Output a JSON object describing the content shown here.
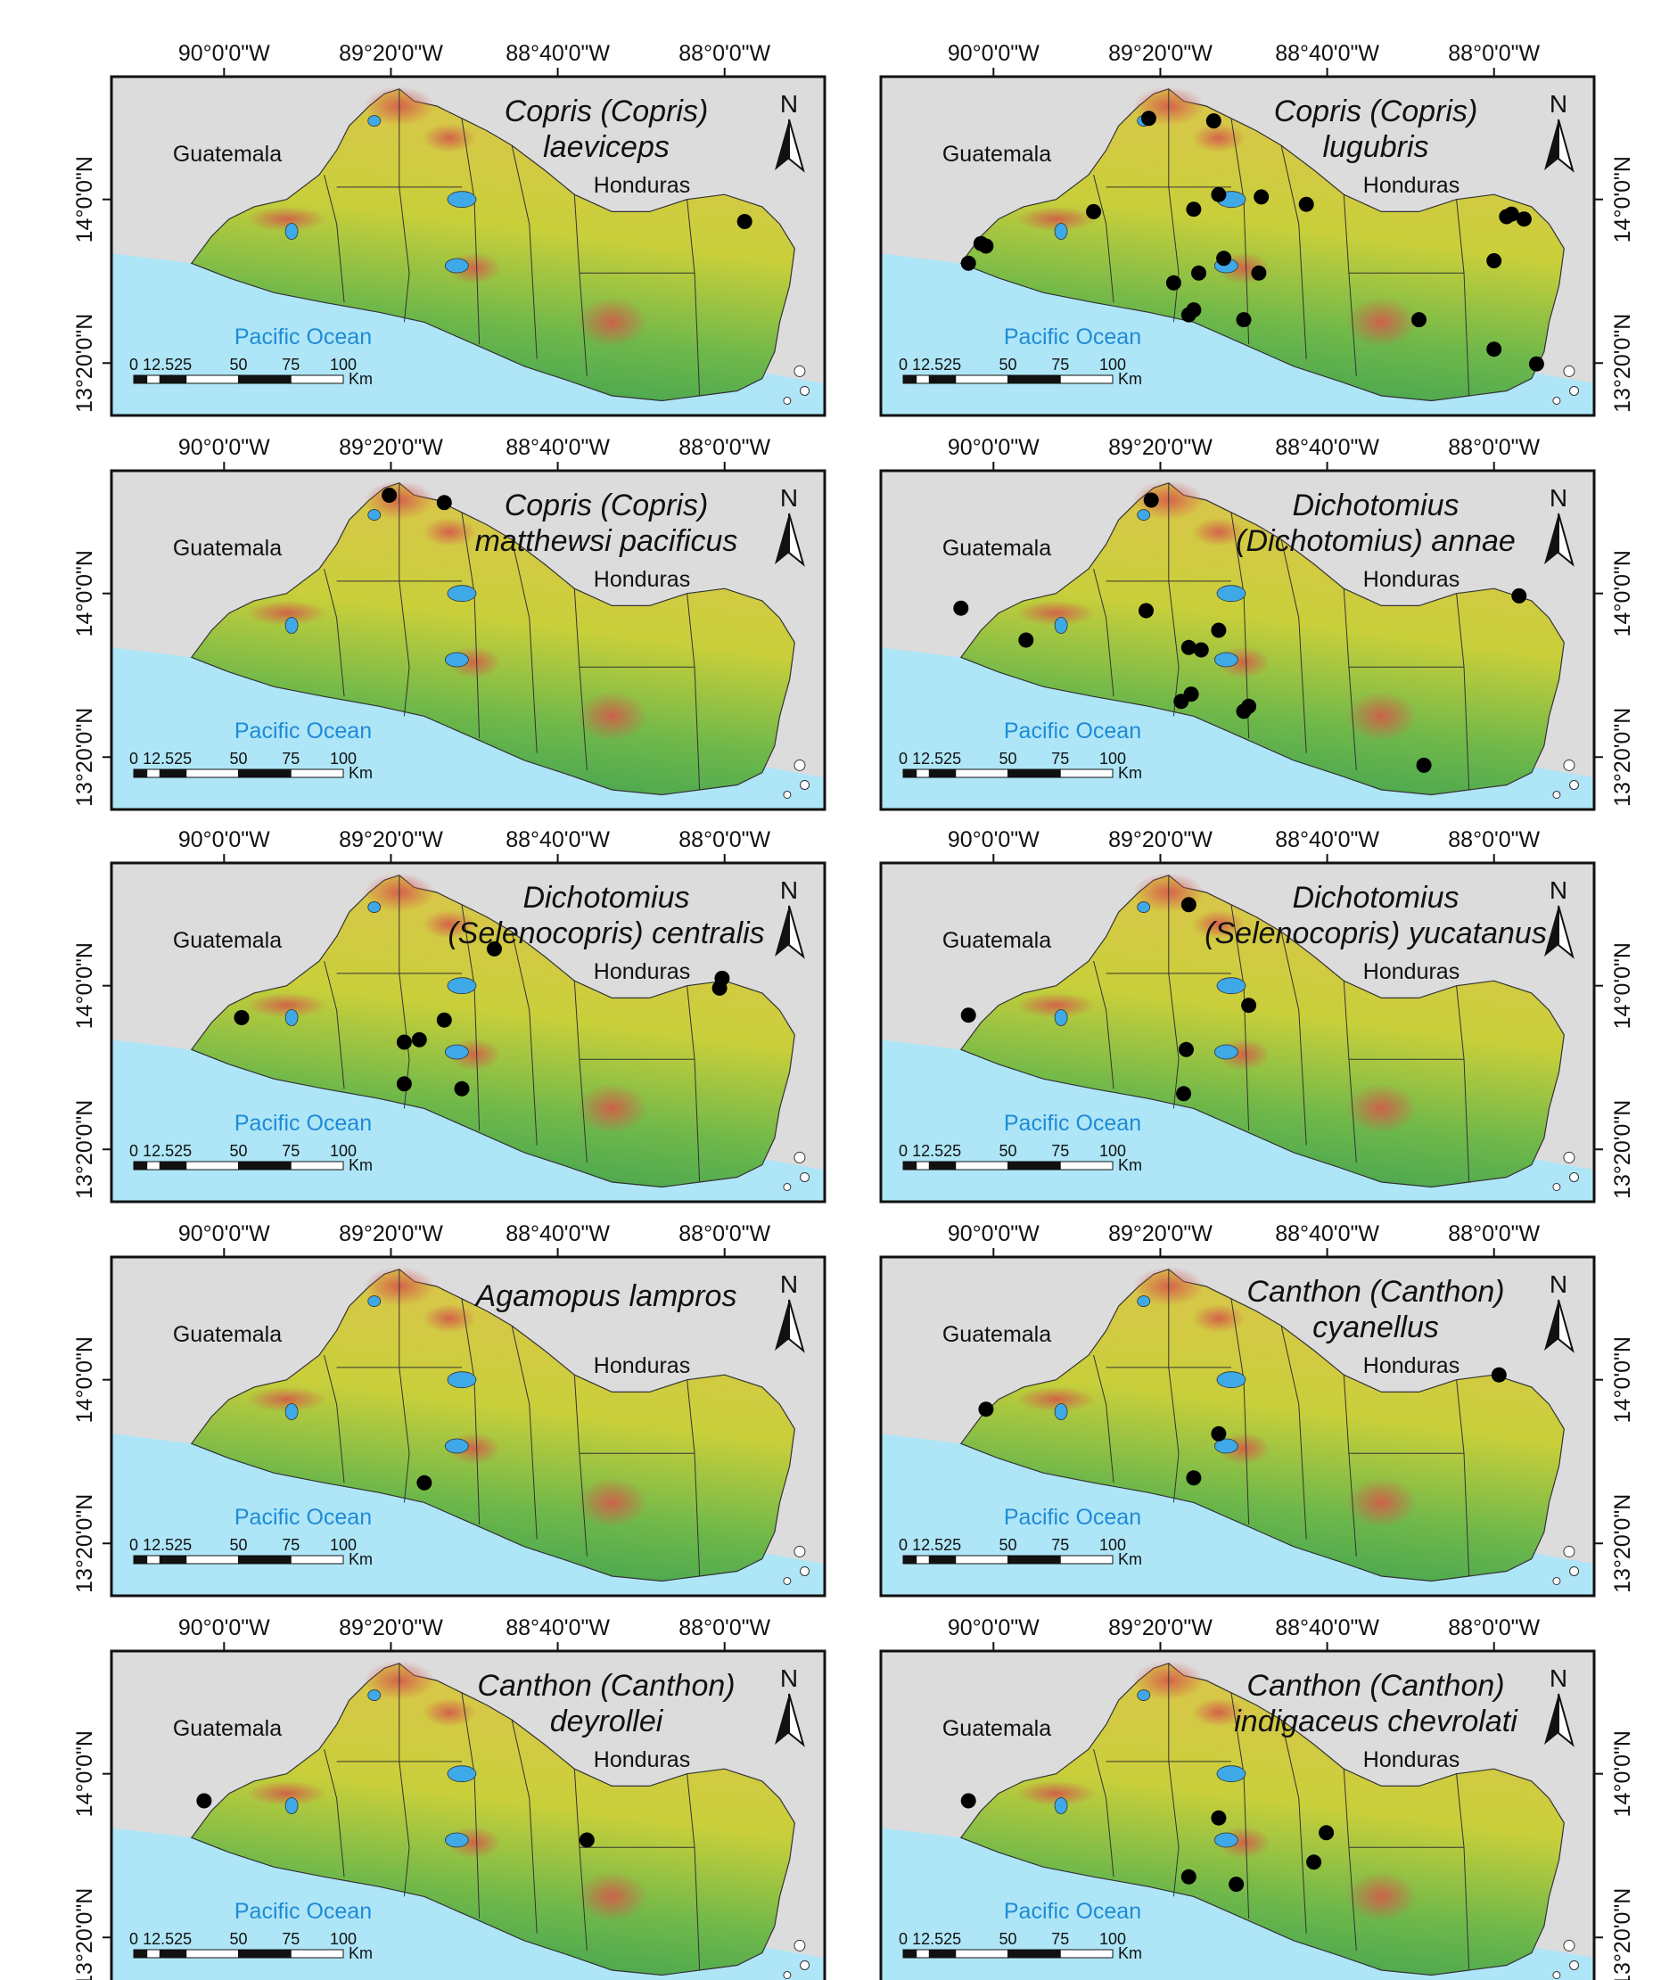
{
  "figure": {
    "top_ticks": [
      "90°0'0\"W",
      "89°20'0\"W",
      "88°40'0\"W",
      "88°0'0\"W"
    ],
    "side_ticks": [
      "14°0'0\"N",
      "13°20'0\"N"
    ],
    "countries": [
      "Guatemala",
      "Honduras"
    ],
    "ocean": "Pacific Ocean",
    "scale_labels": [
      "0",
      "12.525",
      "50",
      "75",
      "100"
    ],
    "scale_unit": "Km",
    "north_label": "N",
    "colors": {
      "ocean": "#aee6f7",
      "land_outside": "#dcdcdc",
      "relief_low": "#2f9b55",
      "relief_mid": "#c9cf3a",
      "relief_high": "#d4584a",
      "lake": "#3fa9e8",
      "record_dot": "#000000"
    }
  },
  "maps": [
    {
      "title_lines": [
        "Copris (Copris)",
        "laeviceps"
      ],
      "records": [
        [
          -87.92,
          13.91
        ]
      ]
    },
    {
      "title_lines": [
        "Copris (Copris)",
        "lugubris"
      ],
      "records": [
        [
          -90.1,
          13.74
        ],
        [
          -90.05,
          13.82
        ],
        [
          -90.03,
          13.81
        ],
        [
          -89.38,
          14.33
        ],
        [
          -89.12,
          14.32
        ],
        [
          -89.6,
          13.95
        ],
        [
          -89.2,
          13.96
        ],
        [
          -89.1,
          14.02
        ],
        [
          -88.93,
          14.01
        ],
        [
          -88.75,
          13.98
        ],
        [
          -89.28,
          13.66
        ],
        [
          -89.18,
          13.7
        ],
        [
          -89.08,
          13.76
        ],
        [
          -88.94,
          13.7
        ],
        [
          -89.22,
          13.53
        ],
        [
          -89.2,
          13.55
        ],
        [
          -89.0,
          13.51
        ],
        [
          -88.3,
          13.51
        ],
        [
          -87.93,
          13.94
        ],
        [
          -87.88,
          13.92
        ],
        [
          -87.95,
          13.93
        ],
        [
          -88.0,
          13.75
        ],
        [
          -88.0,
          13.39
        ],
        [
          -87.83,
          13.33
        ]
      ]
    },
    {
      "title_lines": [
        "Copris (Copris)",
        "matthewsi pacificus"
      ],
      "records": [
        [
          -89.34,
          14.4
        ],
        [
          -89.12,
          14.37
        ]
      ]
    },
    {
      "title_lines": [
        "Dichotomius",
        "(Dichotomius) annae"
      ],
      "records": [
        [
          -89.37,
          14.38
        ],
        [
          -90.13,
          13.94
        ],
        [
          -89.87,
          13.81
        ],
        [
          -89.39,
          13.93
        ],
        [
          -89.22,
          13.78
        ],
        [
          -89.17,
          13.77
        ],
        [
          -89.1,
          13.85
        ],
        [
          -89.21,
          13.59
        ],
        [
          -89.25,
          13.56
        ],
        [
          -88.98,
          13.54
        ],
        [
          -89.0,
          13.52
        ],
        [
          -87.9,
          13.99
        ],
        [
          -88.28,
          13.3
        ]
      ]
    },
    {
      "title_lines": [
        "Dichotomius",
        "(Selenocopris) centralis"
      ],
      "records": [
        [
          -89.93,
          13.87
        ],
        [
          -89.28,
          13.77
        ],
        [
          -89.22,
          13.78
        ],
        [
          -89.12,
          13.86
        ],
        [
          -88.92,
          14.15
        ],
        [
          -89.28,
          13.6
        ],
        [
          -89.05,
          13.58
        ],
        [
          -88.01,
          14.03
        ],
        [
          -88.02,
          13.99
        ]
      ]
    },
    {
      "title_lines": [
        "Dichotomius",
        "(Selenocopris) yucatanus"
      ],
      "records": [
        [
          -90.1,
          13.88
        ],
        [
          -89.22,
          14.33
        ],
        [
          -88.98,
          13.92
        ],
        [
          -89.23,
          13.74
        ],
        [
          -89.24,
          13.56
        ]
      ]
    },
    {
      "title_lines": [
        "Agamopus lampros"
      ],
      "records": [
        [
          -89.2,
          13.58
        ]
      ]
    },
    {
      "title_lines": [
        "Canthon (Canthon)",
        "cyanellus"
      ],
      "records": [
        [
          -90.03,
          13.88
        ],
        [
          -89.1,
          13.78
        ],
        [
          -89.2,
          13.6
        ],
        [
          -87.98,
          14.02
        ]
      ]
    },
    {
      "title_lines": [
        "Canthon (Canthon)",
        "deyrollei"
      ],
      "records": [
        [
          -90.08,
          13.89
        ],
        [
          -88.55,
          13.73
        ]
      ]
    },
    {
      "title_lines": [
        "Canthon (Canthon)",
        "indigaceus chevrolati"
      ],
      "records": [
        [
          -90.1,
          13.89
        ],
        [
          -89.1,
          13.82
        ],
        [
          -88.67,
          13.76
        ],
        [
          -88.72,
          13.64
        ],
        [
          -89.22,
          13.58
        ],
        [
          -89.03,
          13.55
        ]
      ]
    }
  ]
}
